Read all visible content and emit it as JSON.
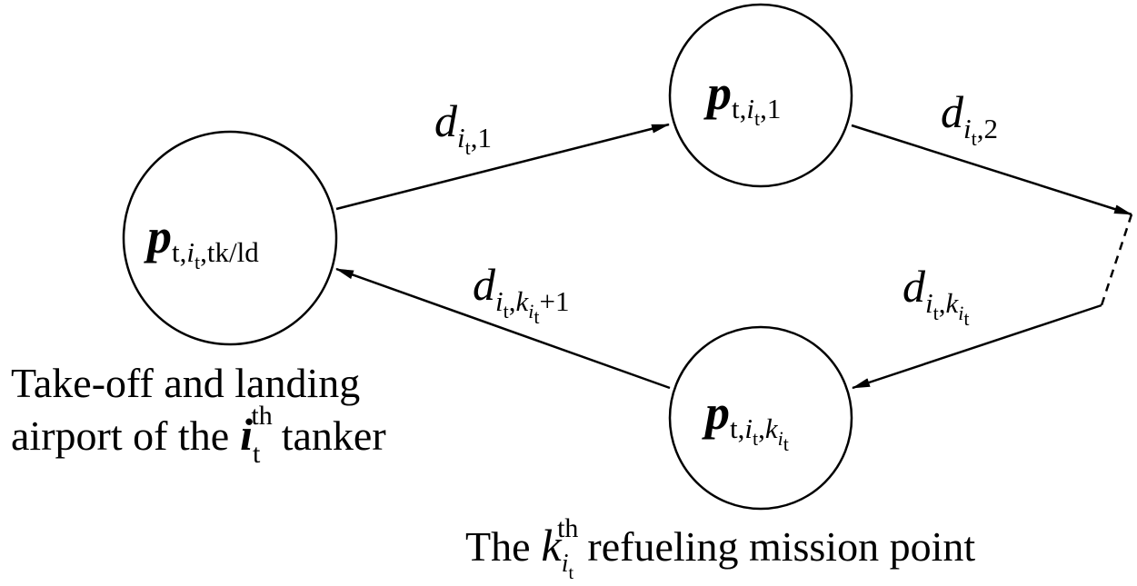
{
  "captions": {
    "airport_line1": "Take-off and landing",
    "airport_line2_pre": "airport of the",
    "airport_var": "i",
    "airport_var_sub": "t",
    "airport_sup": "th",
    "airport_line2_post": "tanker",
    "mission_pre": "The",
    "mission_var": "k",
    "mission_var_sub": "i",
    "mission_var_subsub": "t",
    "mission_sup": "th",
    "mission_post": "refueling mission point"
  },
  "nodes": {
    "airport": {
      "symbol": "p",
      "sub_t": "t,",
      "sub_i": "i",
      "sub_i_sub": "t",
      "sub_tail": ",tk/ld"
    },
    "first": {
      "symbol": "p",
      "sub_t": "t,",
      "sub_i": "i",
      "sub_i_sub": "t",
      "sub_tail": ",1"
    },
    "kth": {
      "symbol": "p",
      "sub_t": "t,",
      "sub_i": "i",
      "sub_i_sub": "t",
      "sub_comma": ",",
      "sub_k": "k",
      "sub_k_sub": "i",
      "sub_k_subsub": "t"
    }
  },
  "edges": {
    "d1": {
      "symbol": "d",
      "sub_i": "i",
      "sub_i_sub": "t",
      "sub_tail": ",1"
    },
    "d2": {
      "symbol": "d",
      "sub_i": "i",
      "sub_i_sub": "t",
      "sub_tail": ",2"
    },
    "dk": {
      "symbol": "d",
      "sub_i": "i",
      "sub_i_sub": "t",
      "sub_comma": ",",
      "sub_k": "k",
      "sub_k_sub": "i",
      "sub_k_subsub": "t"
    },
    "dk1": {
      "symbol": "d",
      "sub_i": "i",
      "sub_i_sub": "t",
      "sub_comma": ",",
      "sub_k": "k",
      "sub_k_sub": "i",
      "sub_k_subsub": "t",
      "sub_tail": "+1"
    }
  }
}
